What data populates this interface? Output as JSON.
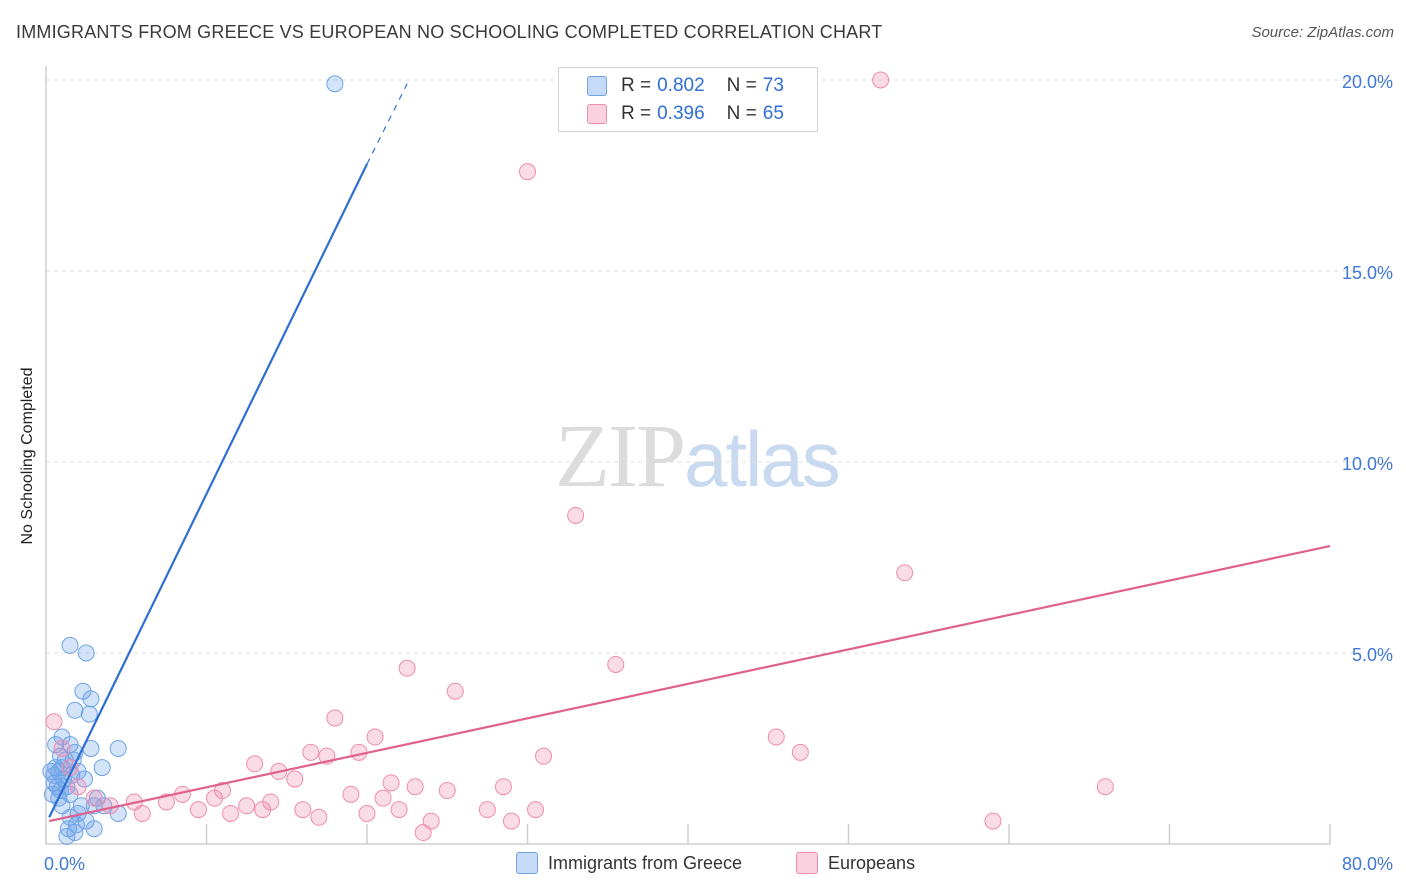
{
  "header": {
    "title": "IMMIGRANTS FROM GREECE VS EUROPEAN NO SCHOOLING COMPLETED CORRELATION CHART",
    "source": "Source: ZipAtlas.com"
  },
  "watermark": {
    "zip": "ZIP",
    "atlas": "atlas"
  },
  "legend": {
    "rows": [
      {
        "r_label": "R = ",
        "r_value": "0.802",
        "n_label": "N = ",
        "n_value": "73",
        "color": "#6ea3e8"
      },
      {
        "r_label": "R = ",
        "r_value": "0.396",
        "n_label": "N = ",
        "n_value": "65",
        "color": "#f08cae"
      }
    ]
  },
  "bottom_legend": {
    "items": [
      {
        "label": "Immigrants from Greece",
        "color": "#6ea3e8"
      },
      {
        "label": "Europeans",
        "color": "#f08cae"
      }
    ]
  },
  "chart_data": {
    "type": "scatter",
    "title": "IMMIGRANTS FROM GREECE VS EUROPEAN NO SCHOOLING COMPLETED CORRELATION CHART",
    "xlabel": "",
    "ylabel": "No Schooling Completed",
    "xlim": [
      0,
      80
    ],
    "ylim": [
      0,
      20
    ],
    "x_tick_labels": [
      "0.0%",
      "80.0%"
    ],
    "y_ticks": [
      5,
      10,
      15,
      20
    ],
    "y_tick_labels": [
      "5.0%",
      "10.0%",
      "15.0%",
      "20.0%"
    ],
    "grid": "horizontal dashed",
    "series": [
      {
        "name": "Immigrants from Greece",
        "color": "#6ea3e8",
        "line_color": "#2d6fd2",
        "trend": {
          "x0": 0.2,
          "y0": 0.7,
          "x1": 20.0,
          "y1": 17.8,
          "dash_to_x": 22.5,
          "dash_to_y": 19.9
        },
        "points": [
          [
            18.0,
            19.9
          ],
          [
            1.5,
            5.2
          ],
          [
            2.5,
            5.0
          ],
          [
            2.3,
            4.0
          ],
          [
            2.8,
            3.8
          ],
          [
            1.8,
            3.5
          ],
          [
            2.7,
            3.4
          ],
          [
            4.5,
            2.5
          ],
          [
            2.8,
            2.5
          ],
          [
            1.0,
            2.8
          ],
          [
            1.5,
            2.6
          ],
          [
            1.8,
            2.4
          ],
          [
            1.2,
            2.2
          ],
          [
            0.9,
            2.3
          ],
          [
            0.6,
            2.0
          ],
          [
            0.8,
            1.9
          ],
          [
            1.6,
            1.8
          ],
          [
            2.0,
            1.9
          ],
          [
            1.1,
            1.7
          ],
          [
            0.5,
            1.6
          ],
          [
            0.7,
            1.5
          ],
          [
            1.3,
            1.5
          ],
          [
            0.9,
            1.4
          ],
          [
            0.4,
            1.3
          ],
          [
            0.8,
            1.2
          ],
          [
            1.5,
            1.3
          ],
          [
            3.5,
            2.0
          ],
          [
            1.0,
            1.0
          ],
          [
            2.2,
            1.0
          ],
          [
            3.0,
            1.0
          ],
          [
            3.6,
            1.0
          ],
          [
            4.5,
            0.8
          ],
          [
            2.0,
            0.8
          ],
          [
            1.5,
            0.7
          ],
          [
            2.5,
            0.6
          ],
          [
            1.9,
            0.5
          ],
          [
            3.0,
            0.4
          ],
          [
            1.4,
            0.4
          ],
          [
            1.8,
            0.3
          ],
          [
            1.3,
            0.2
          ],
          [
            0.5,
            1.8
          ],
          [
            1.0,
            2.0
          ],
          [
            2.4,
            1.7
          ],
          [
            0.6,
            2.6
          ],
          [
            3.2,
            1.2
          ],
          [
            1.7,
            2.2
          ],
          [
            0.3,
            1.9
          ]
        ]
      },
      {
        "name": "Europeans",
        "color": "#f08cae",
        "line_color": "#e0608e",
        "trend": {
          "x0": 0.2,
          "y0": 0.6,
          "x1": 80.0,
          "y1": 7.8
        },
        "points": [
          [
            52.0,
            20.0
          ],
          [
            30.0,
            17.6
          ],
          [
            33.0,
            8.6
          ],
          [
            53.5,
            7.1
          ],
          [
            35.5,
            4.7
          ],
          [
            22.5,
            4.6
          ],
          [
            25.5,
            4.0
          ],
          [
            18.0,
            3.3
          ],
          [
            20.5,
            2.8
          ],
          [
            45.5,
            2.8
          ],
          [
            47.0,
            2.4
          ],
          [
            16.5,
            2.4
          ],
          [
            17.5,
            2.3
          ],
          [
            19.5,
            2.4
          ],
          [
            31.0,
            2.3
          ],
          [
            13.0,
            2.1
          ],
          [
            14.5,
            1.9
          ],
          [
            15.5,
            1.7
          ],
          [
            21.5,
            1.6
          ],
          [
            23.0,
            1.5
          ],
          [
            28.5,
            1.5
          ],
          [
            66.0,
            1.5
          ],
          [
            25.0,
            1.4
          ],
          [
            11.0,
            1.4
          ],
          [
            19.0,
            1.3
          ],
          [
            21.0,
            1.2
          ],
          [
            8.5,
            1.3
          ],
          [
            10.5,
            1.2
          ],
          [
            7.5,
            1.1
          ],
          [
            5.5,
            1.1
          ],
          [
            12.5,
            1.0
          ],
          [
            27.5,
            0.9
          ],
          [
            30.5,
            0.9
          ],
          [
            22.0,
            0.9
          ],
          [
            16.0,
            0.9
          ],
          [
            13.5,
            0.9
          ],
          [
            11.5,
            0.8
          ],
          [
            20.0,
            0.8
          ],
          [
            17.0,
            0.7
          ],
          [
            24.0,
            0.6
          ],
          [
            29.0,
            0.6
          ],
          [
            59.0,
            0.6
          ],
          [
            23.5,
            0.3
          ],
          [
            6.0,
            0.8
          ],
          [
            4.0,
            1.0
          ],
          [
            3.0,
            1.2
          ],
          [
            2.0,
            1.5
          ],
          [
            1.5,
            2.0
          ],
          [
            0.5,
            3.2
          ],
          [
            1.0,
            2.5
          ],
          [
            9.5,
            0.9
          ],
          [
            14.0,
            1.1
          ]
        ]
      }
    ]
  }
}
